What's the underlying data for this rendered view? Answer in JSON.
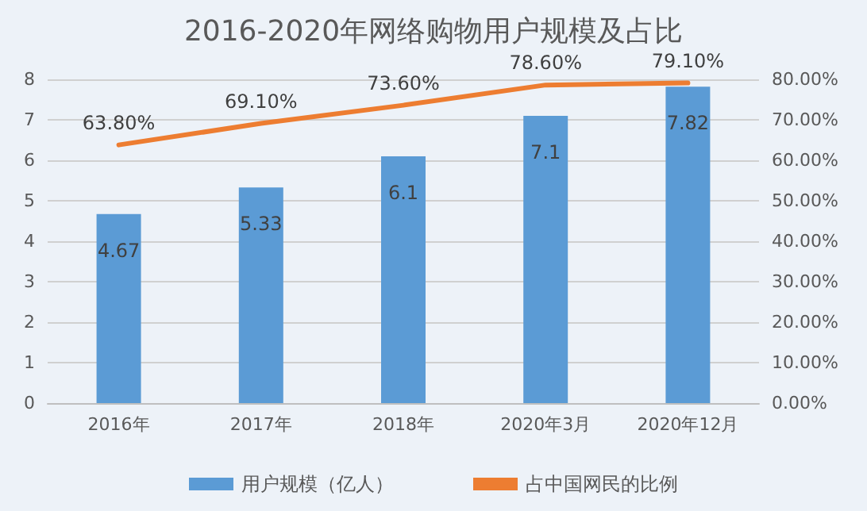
{
  "chart_data": {
    "type": "bar",
    "title": "2016-2020年网络购物用户规模及占比",
    "categories": [
      "2016年",
      "2017年",
      "2018年",
      "2020年3月",
      "2020年12月"
    ],
    "series": [
      {
        "name": "用户规模（亿人）",
        "color": "#5b9bd5",
        "values": [
          4.67,
          5.33,
          6.1,
          7.1,
          7.82
        ],
        "value_labels": [
          "4.67",
          "5.33",
          "6.1",
          "7.1",
          "7.82"
        ]
      },
      {
        "name": "占中国网民的比例",
        "type": "line",
        "axis": "y2",
        "color": "#ed7d31",
        "values": [
          63.8,
          69.1,
          73.6,
          78.6,
          79.1
        ],
        "value_labels": [
          "63.80%",
          "69.10%",
          "73.60%",
          "78.60%",
          "79.10%"
        ]
      }
    ],
    "ylim": [
      0,
      8
    ],
    "yticks": [
      0,
      1,
      2,
      3,
      4,
      5,
      6,
      7,
      8
    ],
    "y2lim": [
      0,
      80
    ],
    "y2ticks": [
      {
        "value": 0,
        "label": "0.00%"
      },
      {
        "value": 10,
        "label": "10.00%"
      },
      {
        "value": 20,
        "label": "20.00%"
      },
      {
        "value": 30,
        "label": "30.00%"
      },
      {
        "value": 40,
        "label": "40.00%"
      },
      {
        "value": 50,
        "label": "50.00%"
      },
      {
        "value": 60,
        "label": "60.00%"
      },
      {
        "value": 70,
        "label": "70.00%"
      },
      {
        "value": 80,
        "label": "80.00%"
      }
    ],
    "grid": "y",
    "legend": "bottom",
    "marker": "none",
    "line_style": "solid"
  }
}
